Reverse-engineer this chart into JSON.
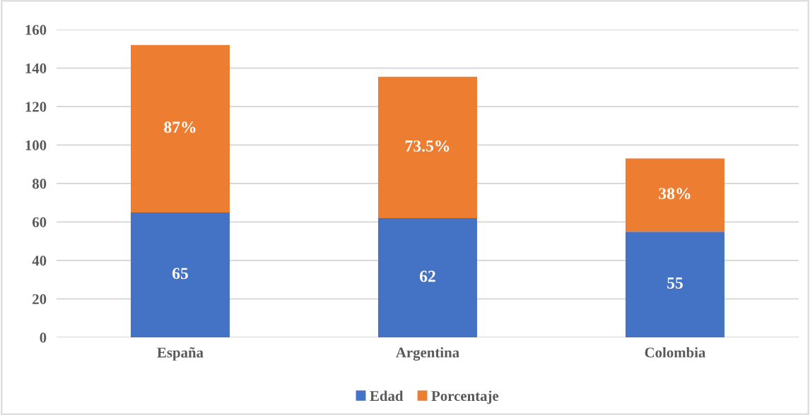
{
  "chart_data": {
    "type": "bar",
    "stacked": true,
    "categories": [
      "España",
      "Argentina",
      "Colombia"
    ],
    "series": [
      {
        "name": "Edad",
        "color": "#4472c4",
        "values": [
          65,
          62,
          55
        ],
        "value_labels": [
          "65",
          "62",
          "55"
        ]
      },
      {
        "name": "Porcentaje",
        "color": "#ed7d31",
        "values": [
          87,
          73.5,
          38
        ],
        "value_labels": [
          "87%",
          "73.5%",
          "38%"
        ]
      }
    ],
    "ylim": [
      0,
      160
    ],
    "yticks": [
      0,
      20,
      40,
      60,
      80,
      100,
      120,
      140,
      160
    ],
    "grid": "y",
    "legend": "bottom"
  }
}
